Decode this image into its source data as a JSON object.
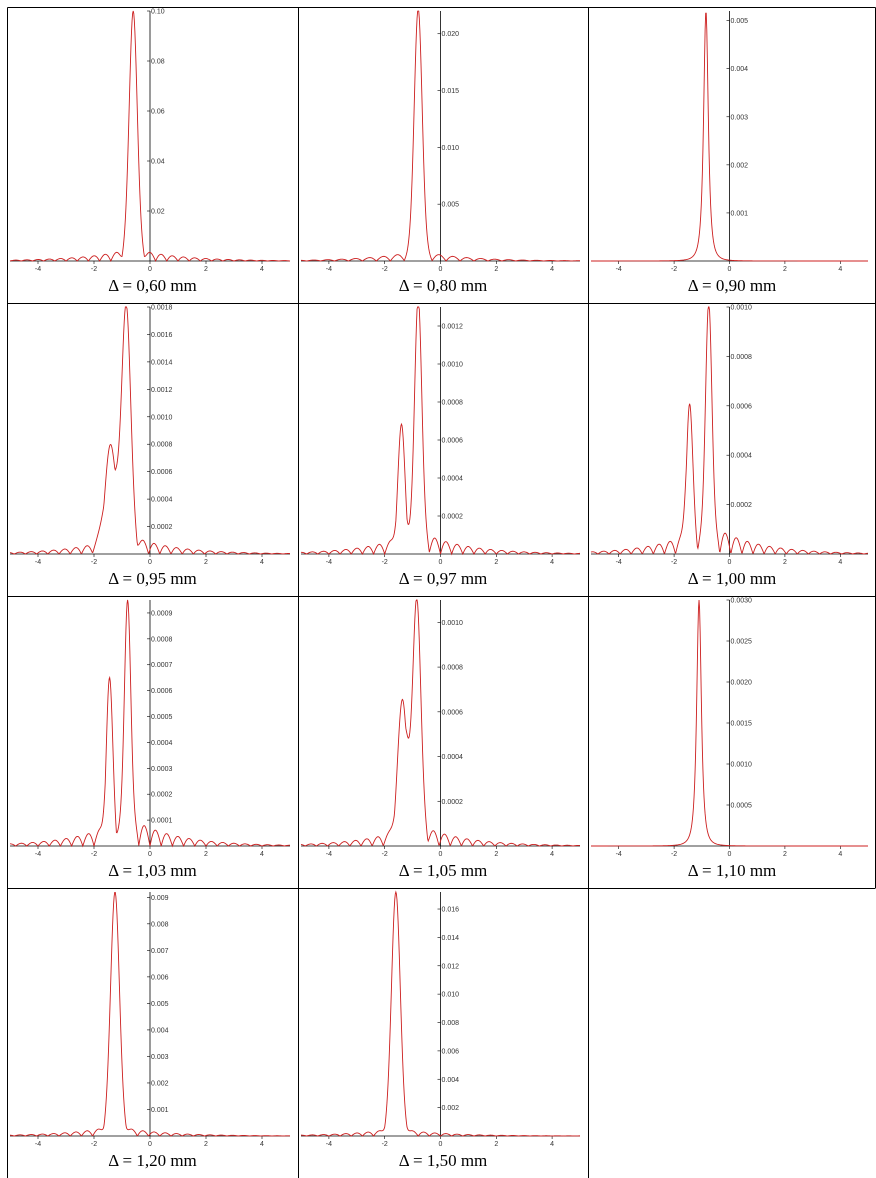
{
  "chart_data": [
    {
      "type": "line",
      "caption": "Δ = 0,60 mm",
      "xlim": [
        -5,
        5
      ],
      "ylim": [
        0,
        0.1
      ],
      "xticks": [
        "-4",
        "-2",
        "0",
        "2",
        "4"
      ],
      "yticks": [
        "0.02",
        "0.04",
        "0.06",
        "0.08",
        "0.10"
      ],
      "ytick_values": [
        0.02,
        0.04,
        0.06,
        0.08,
        0.1
      ],
      "shape": {
        "peak_x": -0.6,
        "peak_y": 0.1,
        "width": 0.2,
        "shoulder": null,
        "side_lobes": 0.05,
        "lobe_period": 0.4
      }
    },
    {
      "type": "line",
      "caption": "Δ = 0,80 mm",
      "xlim": [
        -5,
        5
      ],
      "ylim": [
        0,
        0.022
      ],
      "xticks": [
        "-4",
        "-2",
        "0",
        "2",
        "4"
      ],
      "yticks": [
        "0.005",
        "0.010",
        "0.015",
        "0.020"
      ],
      "ytick_values": [
        0.005,
        0.01,
        0.015,
        0.02
      ],
      "shape": {
        "peak_x": -0.8,
        "peak_y": 0.0222,
        "width": 0.2,
        "shoulder": null,
        "side_lobes": 0.04,
        "lobe_period": 0.5
      }
    },
    {
      "type": "line",
      "caption": "Δ = 0,90 mm",
      "xlim": [
        -5,
        5
      ],
      "ylim": [
        0,
        0.0052
      ],
      "xticks": [
        "-4",
        "-2",
        "0",
        "2",
        "4"
      ],
      "yticks": [
        "0.001",
        "0.002",
        "0.003",
        "0.004",
        "0.005"
      ],
      "ytick_values": [
        0.001,
        0.002,
        0.003,
        0.004,
        0.005
      ],
      "shape": {
        "peak_x": -0.85,
        "peak_y": 0.0052,
        "width": 0.22,
        "shoulder": null,
        "side_lobes": 0.0,
        "lobe_period": 0.5,
        "lorentz": true
      }
    },
    {
      "type": "line",
      "caption": "Δ = 0,95 mm",
      "xlim": [
        -5,
        5
      ],
      "ylim": [
        0,
        0.0018
      ],
      "xticks": [
        "-4",
        "-2",
        "0",
        "2",
        "4"
      ],
      "yticks": [
        "0.0002",
        "0.0004",
        "0.0006",
        "0.0008",
        "0.0010",
        "0.0012",
        "0.0014",
        "0.0016",
        "0.0018"
      ],
      "ytick_values": [
        0.0002,
        0.0004,
        0.0006,
        0.0008,
        0.001,
        0.0012,
        0.0014,
        0.0016,
        0.0018
      ],
      "shape": {
        "peak_x": -0.85,
        "peak_y": 0.0018,
        "width": 0.22,
        "shoulder": {
          "x": -1.4,
          "y": 0.0007,
          "w": 0.3
        },
        "side_lobes": 0.08,
        "lobe_period": 0.4
      }
    },
    {
      "type": "line",
      "caption": "Δ = 0,97 mm",
      "xlim": [
        -5,
        5
      ],
      "ylim": [
        0,
        0.0013
      ],
      "xticks": [
        "-4",
        "-2",
        "0",
        "2",
        "4"
      ],
      "yticks": [
        "0.0002",
        "0.0004",
        "0.0006",
        "0.0008",
        "0.0010",
        "0.0012"
      ],
      "ytick_values": [
        0.0002,
        0.0004,
        0.0006,
        0.0008,
        0.001,
        0.0012
      ],
      "shape": {
        "peak_x": -0.8,
        "peak_y": 0.00135,
        "width": 0.18,
        "shoulder": {
          "x": -1.4,
          "y": 0.0006,
          "w": 0.18
        },
        "side_lobes": 0.09,
        "lobe_period": 0.4
      }
    },
    {
      "type": "line",
      "caption": "Δ = 1,00 mm",
      "xlim": [
        -5,
        5
      ],
      "ylim": [
        0,
        0.001
      ],
      "xticks": [
        "-4",
        "-2",
        "0",
        "2",
        "4"
      ],
      "yticks": [
        "0.0002",
        "0.0004",
        "0.0006",
        "0.0008",
        "0.0010"
      ],
      "ytick_values": [
        0.0002,
        0.0004,
        0.0006,
        0.0008,
        0.001
      ],
      "shape": {
        "peak_x": -0.75,
        "peak_y": 0.00102,
        "width": 0.16,
        "shoulder": {
          "x": -1.45,
          "y": 0.00055,
          "w": 0.16
        },
        "side_lobes": 0.12,
        "lobe_period": 0.4
      }
    },
    {
      "type": "line",
      "caption": "Δ = 1,03 mm",
      "xlim": [
        -5,
        5
      ],
      "ylim": [
        0,
        0.00095
      ],
      "xticks": [
        "-4",
        "-2",
        "0",
        "2",
        "4"
      ],
      "yticks": [
        "0.0001",
        "0.0002",
        "0.0003",
        "0.0004",
        "0.0005",
        "0.0006",
        "0.0007",
        "0.0008",
        "0.0009"
      ],
      "ytick_values": [
        0.0001,
        0.0002,
        0.0003,
        0.0004,
        0.0005,
        0.0006,
        0.0007,
        0.0008,
        0.0009
      ],
      "shape": {
        "peak_x": -0.8,
        "peak_y": 0.00095,
        "width": 0.16,
        "shoulder": {
          "x": -1.45,
          "y": 0.00058,
          "w": 0.16
        },
        "side_lobes": 0.12,
        "lobe_period": 0.4
      }
    },
    {
      "type": "line",
      "caption": "Δ = 1,05 mm",
      "xlim": [
        -5,
        5
      ],
      "ylim": [
        0,
        0.0011
      ],
      "xticks": [
        "-4",
        "-2",
        "0",
        "2",
        "4"
      ],
      "yticks": [
        "0.0002",
        "0.0004",
        "0.0006",
        "0.0008",
        "0.0010"
      ],
      "ytick_values": [
        0.0002,
        0.0004,
        0.0006,
        0.0008,
        0.001
      ],
      "shape": {
        "peak_x": -0.85,
        "peak_y": 0.0011,
        "width": 0.2,
        "shoulder": {
          "x": -1.35,
          "y": 0.0006,
          "w": 0.25
        },
        "side_lobes": 0.09,
        "lobe_period": 0.4
      }
    },
    {
      "type": "line",
      "caption": "Δ = 1,10 mm",
      "xlim": [
        -5,
        5
      ],
      "ylim": [
        0,
        0.003
      ],
      "xticks": [
        "-4",
        "-2",
        "0",
        "2",
        "4"
      ],
      "yticks": [
        "0.0005",
        "0.0010",
        "0.0015",
        "0.0020",
        "0.0025",
        "0.0030"
      ],
      "ytick_values": [
        0.0005,
        0.001,
        0.0015,
        0.002,
        0.0025,
        0.003
      ],
      "shape": {
        "peak_x": -1.1,
        "peak_y": 0.003,
        "width": 0.22,
        "shoulder": null,
        "side_lobes": 0.0,
        "lobe_period": 0.5,
        "lorentz": true
      }
    },
    {
      "type": "line",
      "caption": "Δ = 1,20 mm",
      "xlim": [
        -5,
        5
      ],
      "ylim": [
        0,
        0.0092
      ],
      "xticks": [
        "-4",
        "-2",
        "0",
        "2",
        "4"
      ],
      "yticks": [
        "0.001",
        "0.002",
        "0.003",
        "0.004",
        "0.005",
        "0.006",
        "0.007",
        "0.008",
        "0.009"
      ],
      "ytick_values": [
        0.001,
        0.002,
        0.003,
        0.004,
        0.005,
        0.006,
        0.007,
        0.008,
        0.009
      ],
      "shape": {
        "peak_x": -1.25,
        "peak_y": 0.0092,
        "width": 0.22,
        "shoulder": null,
        "side_lobes": 0.04,
        "lobe_period": 0.4
      }
    },
    {
      "type": "line",
      "caption": "Δ = 1,50 mm",
      "xlim": [
        -5,
        5
      ],
      "ylim": [
        0,
        0.0172
      ],
      "xticks": [
        "-4",
        "-2",
        "0",
        "2",
        "4"
      ],
      "yticks": [
        "0.002",
        "0.004",
        "0.006",
        "0.008",
        "0.010",
        "0.012",
        "0.014",
        "0.016"
      ],
      "ytick_values": [
        0.002,
        0.004,
        0.006,
        0.008,
        0.01,
        0.012,
        0.014,
        0.016
      ],
      "shape": {
        "peak_x": -1.6,
        "peak_y": 0.0172,
        "width": 0.22,
        "shoulder": null,
        "side_lobes": 0.03,
        "lobe_period": 0.4
      }
    }
  ],
  "style": {
    "line_color": "#cc1f1f",
    "axis_color": "#000000",
    "border_color": "#000000"
  }
}
